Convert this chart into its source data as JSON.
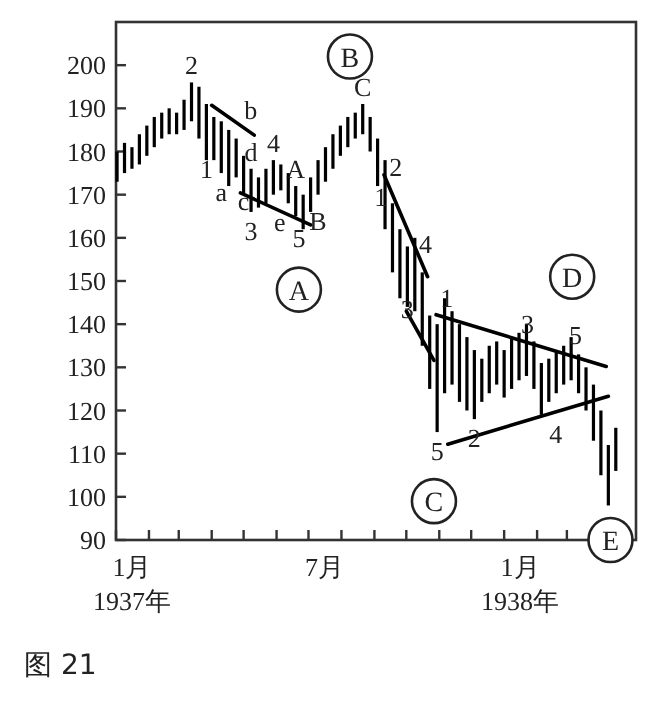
{
  "chart_data": {
    "type": "bar",
    "xlim": [
      "1937-01-01",
      "1938-05-05"
    ],
    "ylim": [
      90,
      210
    ],
    "yticks": [
      90,
      100,
      110,
      120,
      130,
      140,
      150,
      160,
      170,
      180,
      190,
      200
    ],
    "xticks": [
      {
        "value": "1937-01-01",
        "label": null
      },
      {
        "value": "1937-02-01",
        "label": null
      },
      {
        "value": "1937-03-01",
        "label": null
      },
      {
        "value": "1937-04-01",
        "label": null
      },
      {
        "value": "1937-05-01",
        "label": null
      },
      {
        "value": "1937-06-01",
        "label": null
      },
      {
        "value": "1937-07-01",
        "label": null
      },
      {
        "value": "1937-08-01",
        "label": null
      },
      {
        "value": "1937-09-01",
        "label": null
      },
      {
        "value": "1937-10-01",
        "label": null
      },
      {
        "value": "1937-11-01",
        "label": null
      },
      {
        "value": "1937-12-01",
        "label": null
      },
      {
        "value": "1938-01-01",
        "label": null
      },
      {
        "value": "1938-02-01",
        "label": null
      },
      {
        "value": "1938-03-01",
        "label": null
      },
      {
        "value": "1937-01-16",
        "label": "1月\n1937年"
      },
      {
        "value": "1937-07-16",
        "label": "7月"
      },
      {
        "value": "1938-01-16",
        "label": "1月\n1938年"
      }
    ],
    "series": [
      {
        "color": "#000000",
        "x": [
          "1937-01-02",
          "1937-01-09",
          "1937-01-16",
          "1937-01-23",
          "1937-01-30",
          "1937-02-06",
          "1937-02-13",
          "1937-02-20",
          "1937-02-27",
          "1937-03-06",
          "1937-03-13",
          "1937-03-20",
          "1937-03-27",
          "1937-04-03",
          "1937-04-10",
          "1937-04-17",
          "1937-04-24",
          "1937-05-01",
          "1937-05-08",
          "1937-05-15",
          "1937-05-22",
          "1937-05-29",
          "1937-06-05",
          "1937-06-12",
          "1937-06-19",
          "1937-06-26",
          "1937-07-03",
          "1937-07-10",
          "1937-07-17",
          "1937-07-24",
          "1937-07-31",
          "1937-08-07",
          "1937-08-14",
          "1937-08-21",
          "1937-08-28",
          "1937-09-04",
          "1937-09-11",
          "1937-09-18",
          "1937-09-25",
          "1937-10-02",
          "1937-10-09",
          "1937-10-16",
          "1937-10-23",
          "1937-10-30",
          "1937-11-06",
          "1937-11-13",
          "1937-11-20",
          "1937-11-27",
          "1937-12-04",
          "1937-12-11",
          "1937-12-18",
          "1937-12-25",
          "1938-01-01",
          "1938-01-08",
          "1938-01-15",
          "1938-01-22",
          "1938-01-29",
          "1938-02-05",
          "1938-02-12",
          "1938-02-19",
          "1938-02-26",
          "1938-03-05",
          "1938-03-12",
          "1938-03-19",
          "1938-03-26",
          "1938-04-02",
          "1938-04-09",
          "1938-04-16"
        ],
        "base": [
          173,
          175,
          176,
          177,
          179,
          181,
          183,
          184,
          184,
          185,
          187,
          183,
          178,
          178,
          175,
          172,
          174,
          170,
          166,
          167,
          168,
          170,
          171,
          168,
          165,
          162,
          166,
          170,
          173,
          176,
          179,
          181,
          183,
          184,
          180,
          172,
          162,
          152,
          146,
          144,
          143,
          135,
          125,
          115,
          124,
          126,
          122,
          120,
          118,
          122,
          124,
          126,
          123,
          125,
          127,
          128,
          125,
          119,
          122,
          124,
          126,
          127,
          124,
          120,
          113,
          105,
          98,
          106
        ],
        "values": [
          7,
          7,
          5,
          7,
          7,
          7,
          6,
          6,
          5,
          7,
          9,
          12,
          13,
          10,
          12,
          13,
          9,
          9,
          10,
          7,
          8,
          8,
          6,
          7,
          7,
          8,
          8,
          8,
          8,
          8,
          7,
          7,
          6,
          7,
          8,
          11,
          16,
          16,
          16,
          14,
          17,
          17,
          17,
          25,
          22,
          17,
          18,
          17,
          16,
          10,
          11,
          10,
          11,
          12,
          11,
          12,
          11,
          12,
          10,
          10,
          9,
          10,
          9,
          10,
          13,
          15,
          14,
          10
        ]
      },
      {
        "type": "line",
        "color": "#000000",
        "x": [
          "1937-04-01",
          "1937-05-11"
        ],
        "values": [
          190.7,
          183.8
        ]
      },
      {
        "type": "line",
        "color": "#000000",
        "x": [
          "1937-04-28",
          "1937-07-03"
        ],
        "values": [
          170.4,
          163
        ]
      },
      {
        "type": "line",
        "color": "#000000",
        "x": [
          "1937-09-10",
          "1937-10-21"
        ],
        "values": [
          174.6,
          151
        ]
      },
      {
        "type": "line",
        "color": "#000000",
        "x": [
          "1937-10-01",
          "1937-10-27"
        ],
        "values": [
          143,
          131.6
        ]
      },
      {
        "type": "line",
        "color": "#000000",
        "x": [
          "1937-10-29",
          "1938-04-07"
        ],
        "values": [
          142.2,
          130.2
        ]
      },
      {
        "type": "line",
        "color": "#000000",
        "x": [
          "1937-11-09",
          "1938-04-09"
        ],
        "values": [
          112.2,
          123.3
        ]
      }
    ],
    "annotations": [
      {
        "text": "2",
        "x": "1937-03-13",
        "y": 196
      },
      {
        "text": "1",
        "x": "1937-03-27",
        "y": 176
      },
      {
        "text": "a",
        "x": "1937-04-10",
        "y": 175
      },
      {
        "text": "b",
        "x": "1937-04-24",
        "y": 186.7
      },
      {
        "text": "c",
        "x": "1937-05-01",
        "y": 168.5
      },
      {
        "text": "d",
        "x": "1937-05-08",
        "y": 176
      },
      {
        "text": "e",
        "x": "1937-05-22",
        "y": 168
      },
      {
        "text": "3",
        "x": "1937-05-08",
        "y": 166
      },
      {
        "text": "4",
        "x": "1937-05-29",
        "y": 178
      },
      {
        "text": "A",
        "x": "1937-06-19",
        "y": 172
      },
      {
        "text": "5",
        "x": "1937-06-22",
        "y": 160
      },
      {
        "text": "B",
        "x": "1937-07-10",
        "y": 164
      },
      {
        "text": "C",
        "x": "1937-08-21",
        "y": 191
      },
      {
        "text": "2",
        "x": "1937-09-21",
        "y": 176.5
      },
      {
        "text": "1",
        "x": "1937-09-07",
        "y": 169.5
      },
      {
        "text": "3",
        "x": "1937-10-02",
        "y": 143.5
      },
      {
        "text": "4",
        "x": "1937-10-19",
        "y": 158.5
      },
      {
        "text": "5",
        "x": "1937-10-30",
        "y": 115
      },
      {
        "text": "1",
        "x": "1937-11-08",
        "y": 146
      },
      {
        "text": "2",
        "x": "1937-12-04",
        "y": 118
      },
      {
        "text": "3",
        "x": "1938-01-23",
        "y": 140
      },
      {
        "text": "4",
        "x": "1938-02-05",
        "y": 119
      },
      {
        "text": "5",
        "x": "1938-03-09",
        "y": 137.5
      },
      "图 21",
      {
        "text": "A",
        "x": "1937-06-22",
        "y": 148
      },
      {
        "text": "B",
        "x": "1937-08-09",
        "y": 202
      },
      {
        "text": "C",
        "x": "1937-10-27",
        "y": 99
      },
      {
        "text": "D",
        "x": "1938-03-06",
        "y": 151
      },
      {
        "text": "E",
        "x": "1938-04-11",
        "y": 90
      }
    ]
  }
}
